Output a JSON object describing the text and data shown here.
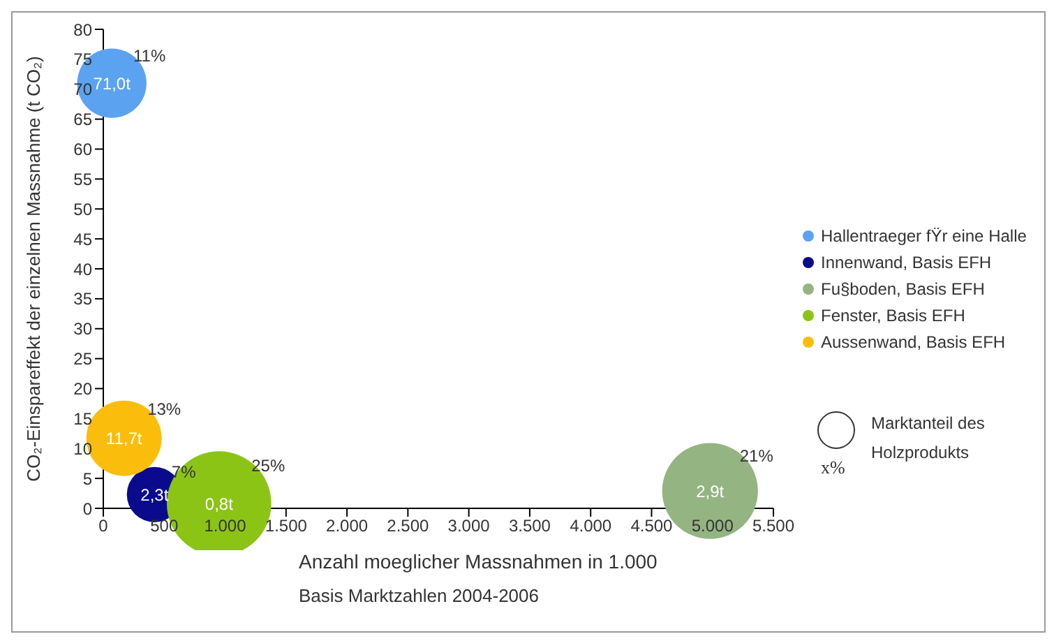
{
  "chart_data": {
    "type": "bubble",
    "ylabel": "CO₂-Einspareffekt der einzelnen Massnahme (t CO₂)",
    "xlabel": "Anzahl moeglicher Massnahmen in 1.000",
    "xlim": [
      0,
      5500
    ],
    "xticks": [
      0,
      500,
      {
        "value": 1000,
        "label": "1.000"
      },
      {
        "value": 1500,
        "label": "1.500"
      },
      {
        "value": 2000,
        "label": "2.000"
      },
      {
        "value": 2500,
        "label": "2.500"
      },
      {
        "value": 3000,
        "label": "3.000"
      },
      {
        "value": 3500,
        "label": "3.500"
      },
      {
        "value": 4000,
        "label": "4.000"
      },
      {
        "value": 4500,
        "label": "4.500"
      },
      {
        "value": 5000,
        "label": "5.000"
      },
      {
        "value": 5500,
        "label": "5.500"
      }
    ],
    "ylim": [
      0,
      80
    ],
    "yticks": [
      0,
      5,
      10,
      15,
      20,
      25,
      30,
      35,
      40,
      45,
      50,
      55,
      60,
      65,
      70,
      75,
      80
    ],
    "grid": false,
    "legend": "right",
    "series": [
      {
        "name": "Hallentraeger fŸr eine Halle",
        "color": "#5ba3f0",
        "x": [
          70
        ],
        "values": [
          71.0
        ],
        "sizes": [
          0.44
        ],
        "value_labels": [
          "71,0t"
        ]
      },
      {
        "name": "Innenwand, Basis EFH",
        "color": "#0a0a8c",
        "x": [
          420
        ],
        "values": [
          2.3
        ],
        "sizes": [
          0.28
        ],
        "value_labels": [
          "2,3t"
        ]
      },
      {
        "name": "Fu§boden, Basis EFH",
        "color": "#94b482",
        "x": [
          4980
        ],
        "values": [
          2.9
        ],
        "sizes": [
          0.84
        ],
        "value_labels": [
          "2,9t"
        ]
      },
      {
        "name": "Fenster, Basis EFH",
        "color": "#8cc416",
        "x": [
          950
        ],
        "values": [
          0.8
        ],
        "sizes": [
          1
        ],
        "value_labels": [
          "0,8t"
        ]
      },
      {
        "name": "Aussenwand, Basis EFH",
        "color": "#fbbd0c",
        "x": [
          170
        ],
        "values": [
          11.7
        ],
        "sizes": [
          0.52
        ],
        "value_labels": [
          "11,7t"
        ]
      }
    ],
    "annotations": [
      {
        "text": "11%",
        "x": 70,
        "y": 71.0
      },
      {
        "text": "7%",
        "x": 420,
        "y": 2.3
      },
      {
        "text": "21%",
        "x": 4980,
        "y": 2.9
      },
      {
        "text": "25%",
        "x": 950,
        "y": 0.8
      },
      {
        "text": "13%",
        "x": 170,
        "y": 11.7
      },
      "Marktanteil des Holzprodukts",
      "x%",
      "Basis Marktzahlen 2004-2006"
    ]
  }
}
